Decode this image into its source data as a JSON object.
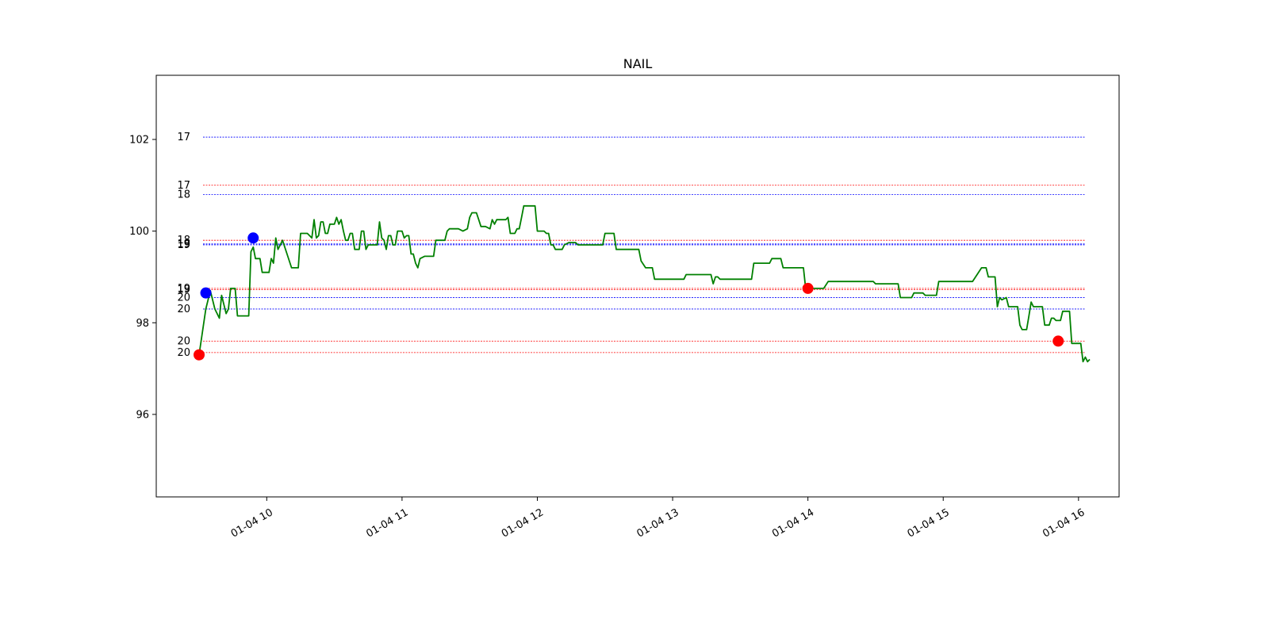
{
  "chart_data": {
    "type": "line",
    "title": "NAIL",
    "xlabel": "",
    "ylabel": "",
    "x_ticks": [
      "01-04 10",
      "01-04 11",
      "01-04 12",
      "01-04 13",
      "01-04 14",
      "01-04 15",
      "01-04 16"
    ],
    "y_ticks": [
      "96",
      "98",
      "100",
      "102"
    ],
    "xlim": [
      "2024-01-04 09:11",
      "2024-01-04 16:18"
    ],
    "ylim": [
      94.2,
      103.4
    ],
    "grid": false,
    "legend": "none",
    "series": [
      {
        "color": "#008000",
        "points": [
          [
            "09:30",
            97.3
          ],
          [
            "09:33",
            98.3
          ],
          [
            "09:35",
            98.7
          ],
          [
            "09:37",
            98.3
          ],
          [
            "09:39",
            98.1
          ],
          [
            "09:40",
            98.6
          ],
          [
            "09:42",
            98.2
          ],
          [
            "09:43",
            98.3
          ],
          [
            "09:44",
            98.75
          ],
          [
            "09:46",
            98.75
          ],
          [
            "09:47",
            98.15
          ],
          [
            "09:50",
            98.15
          ],
          [
            "09:52",
            98.15
          ],
          [
            "09:53",
            99.55
          ],
          [
            "09:54",
            99.65
          ],
          [
            "09:55",
            99.4
          ],
          [
            "09:57",
            99.4
          ],
          [
            "09:58",
            99.1
          ],
          [
            "10:01",
            99.1
          ],
          [
            "10:02",
            99.4
          ],
          [
            "10:03",
            99.3
          ],
          [
            "10:04",
            99.85
          ],
          [
            "10:05",
            99.6
          ],
          [
            "10:06",
            99.7
          ],
          [
            "10:07",
            99.8
          ],
          [
            "10:09",
            99.5
          ],
          [
            "10:11",
            99.2
          ],
          [
            "10:14",
            99.2
          ],
          [
            "10:15",
            99.95
          ],
          [
            "10:18",
            99.95
          ],
          [
            "10:20",
            99.85
          ],
          [
            "10:21",
            100.25
          ],
          [
            "10:22",
            99.85
          ],
          [
            "10:23",
            99.9
          ],
          [
            "10:24",
            100.2
          ],
          [
            "10:25",
            100.2
          ],
          [
            "10:26",
            99.95
          ],
          [
            "10:27",
            99.95
          ],
          [
            "10:28",
            100.15
          ],
          [
            "10:30",
            100.15
          ],
          [
            "10:31",
            100.3
          ],
          [
            "10:32",
            100.15
          ],
          [
            "10:33",
            100.25
          ],
          [
            "10:34",
            100.0
          ],
          [
            "10:35",
            99.8
          ],
          [
            "10:36",
            99.8
          ],
          [
            "10:37",
            99.95
          ],
          [
            "10:38",
            99.95
          ],
          [
            "10:39",
            99.6
          ],
          [
            "10:41",
            99.6
          ],
          [
            "10:42",
            100.0
          ],
          [
            "10:43",
            100.0
          ],
          [
            "10:44",
            99.6
          ],
          [
            "10:45",
            99.7
          ],
          [
            "10:47",
            99.7
          ],
          [
            "10:49",
            99.7
          ],
          [
            "10:50",
            100.2
          ],
          [
            "10:51",
            99.85
          ],
          [
            "10:52",
            99.8
          ],
          [
            "10:53",
            99.6
          ],
          [
            "10:54",
            99.9
          ],
          [
            "10:55",
            99.9
          ],
          [
            "10:56",
            99.7
          ],
          [
            "10:57",
            99.7
          ],
          [
            "10:58",
            100.0
          ],
          [
            "11:00",
            100.0
          ],
          [
            "11:01",
            99.85
          ],
          [
            "11:02",
            99.9
          ],
          [
            "11:03",
            99.9
          ],
          [
            "11:04",
            99.5
          ],
          [
            "11:05",
            99.5
          ],
          [
            "11:06",
            99.3
          ],
          [
            "11:07",
            99.2
          ],
          [
            "11:08",
            99.4
          ],
          [
            "11:10",
            99.45
          ],
          [
            "11:14",
            99.45
          ],
          [
            "11:15",
            99.8
          ],
          [
            "11:18",
            99.8
          ],
          [
            "11:19",
            99.8
          ],
          [
            "11:20",
            100.0
          ],
          [
            "11:21",
            100.05
          ],
          [
            "11:25",
            100.05
          ],
          [
            "11:27",
            100.0
          ],
          [
            "11:29",
            100.05
          ],
          [
            "11:30",
            100.3
          ],
          [
            "11:31",
            100.4
          ],
          [
            "11:33",
            100.4
          ],
          [
            "11:34",
            100.25
          ],
          [
            "11:35",
            100.1
          ],
          [
            "11:37",
            100.1
          ],
          [
            "11:39",
            100.05
          ],
          [
            "11:40",
            100.25
          ],
          [
            "11:41",
            100.15
          ],
          [
            "11:42",
            100.25
          ],
          [
            "11:46",
            100.25
          ],
          [
            "11:47",
            100.3
          ],
          [
            "11:48",
            99.95
          ],
          [
            "11:50",
            99.95
          ],
          [
            "11:51",
            100.05
          ],
          [
            "11:52",
            100.05
          ],
          [
            "11:53",
            100.3
          ],
          [
            "11:54",
            100.55
          ],
          [
            "11:59",
            100.55
          ],
          [
            "12:00",
            100.0
          ],
          [
            "12:03",
            100.0
          ],
          [
            "12:04",
            99.95
          ],
          [
            "12:05",
            99.95
          ],
          [
            "12:06",
            99.7
          ],
          [
            "12:07",
            99.7
          ],
          [
            "12:08",
            99.6
          ],
          [
            "12:11",
            99.6
          ],
          [
            "12:12",
            99.7
          ],
          [
            "12:14",
            99.75
          ],
          [
            "12:17",
            99.75
          ],
          [
            "12:18",
            99.7
          ],
          [
            "12:20",
            99.7
          ],
          [
            "12:29",
            99.7
          ],
          [
            "12:30",
            99.95
          ],
          [
            "12:34",
            99.95
          ],
          [
            "12:35",
            99.6
          ],
          [
            "12:45",
            99.6
          ],
          [
            "12:46",
            99.35
          ],
          [
            "12:48",
            99.2
          ],
          [
            "12:50",
            99.2
          ],
          [
            "12:51",
            99.2
          ],
          [
            "12:52",
            98.95
          ],
          [
            "13:05",
            98.95
          ],
          [
            "13:06",
            99.05
          ],
          [
            "13:17",
            99.05
          ],
          [
            "13:18",
            98.85
          ],
          [
            "13:19",
            99.0
          ],
          [
            "13:20",
            99.0
          ],
          [
            "13:21",
            98.95
          ],
          [
            "13:30",
            98.95
          ],
          [
            "13:35",
            98.95
          ],
          [
            "13:36",
            99.3
          ],
          [
            "13:39",
            99.3
          ],
          [
            "13:43",
            99.3
          ],
          [
            "13:44",
            99.4
          ],
          [
            "13:48",
            99.4
          ],
          [
            "13:49",
            99.2
          ],
          [
            "13:58",
            99.2
          ],
          [
            "13:59",
            98.75
          ],
          [
            "14:07",
            98.75
          ],
          [
            "14:09",
            98.9
          ],
          [
            "14:29",
            98.9
          ],
          [
            "14:30",
            98.85
          ],
          [
            "14:40",
            98.85
          ],
          [
            "14:41",
            98.55
          ],
          [
            "14:46",
            98.55
          ],
          [
            "14:47",
            98.65
          ],
          [
            "14:51",
            98.65
          ],
          [
            "14:52",
            98.6
          ],
          [
            "14:57",
            98.6
          ],
          [
            "14:58",
            98.9
          ],
          [
            "15:03",
            98.9
          ],
          [
            "15:04",
            98.9
          ],
          [
            "15:13",
            98.9
          ],
          [
            "15:17",
            99.2
          ],
          [
            "15:19",
            99.2
          ],
          [
            "15:20",
            99.0
          ],
          [
            "15:23",
            99.0
          ],
          [
            "15:24",
            98.35
          ],
          [
            "15:25",
            98.55
          ],
          [
            "15:26",
            98.5
          ],
          [
            "15:28",
            98.55
          ],
          [
            "15:29",
            98.35
          ],
          [
            "15:33",
            98.35
          ],
          [
            "15:34",
            97.95
          ],
          [
            "15:35",
            97.85
          ],
          [
            "15:37",
            97.85
          ],
          [
            "15:38",
            98.15
          ],
          [
            "15:39",
            98.45
          ],
          [
            "15:40",
            98.35
          ],
          [
            "15:44",
            98.35
          ],
          [
            "15:45",
            97.95
          ],
          [
            "15:47",
            97.95
          ],
          [
            "15:48",
            98.1
          ],
          [
            "15:49",
            98.1
          ],
          [
            "15:50",
            98.05
          ],
          [
            "15:52",
            98.05
          ],
          [
            "15:53",
            98.25
          ],
          [
            "15:56",
            98.25
          ],
          [
            "15:57",
            97.55
          ],
          [
            "15:59",
            97.55
          ],
          [
            "16:01",
            97.55
          ],
          [
            "16:02",
            97.15
          ],
          [
            "16:03",
            97.25
          ],
          [
            "16:04",
            97.15
          ],
          [
            "16:05",
            97.2
          ]
        ]
      }
    ],
    "markers": [
      {
        "x": "09:30",
        "y": 97.3,
        "color": "#ff0000"
      },
      {
        "x": "09:33",
        "y": 98.65,
        "color": "#0000ff"
      },
      {
        "x": "09:54",
        "y": 99.85,
        "color": "#0000ff"
      },
      {
        "x": "14:00",
        "y": 98.75,
        "color": "#ff0000"
      },
      {
        "x": "15:51",
        "y": 97.6,
        "color": "#ff0000"
      }
    ],
    "levels": [
      {
        "label": "17",
        "y": 102.05,
        "color": "#0000ff"
      },
      {
        "label": "17",
        "y": 101.0,
        "color": "#ff0000"
      },
      {
        "label": "18",
        "y": 100.8,
        "color": "#0000ff"
      },
      {
        "label": "18",
        "y": 99.8,
        "color": "#ff0000"
      },
      {
        "label": "19",
        "y": 99.72,
        "color": "#0000ff"
      },
      {
        "label": "19",
        "y": 99.7,
        "color": "#0000ff"
      },
      {
        "label": "19",
        "y": 98.75,
        "color": "#ff0000"
      },
      {
        "label": "19",
        "y": 98.72,
        "color": "#ff0000"
      },
      {
        "label": "20",
        "y": 98.55,
        "color": "#0000ff"
      },
      {
        "label": "20",
        "y": 98.3,
        "color": "#0000ff"
      },
      {
        "label": "20",
        "y": 97.6,
        "color": "#ff0000"
      },
      {
        "label": "20",
        "y": 97.35,
        "color": "#ff0000"
      }
    ]
  }
}
